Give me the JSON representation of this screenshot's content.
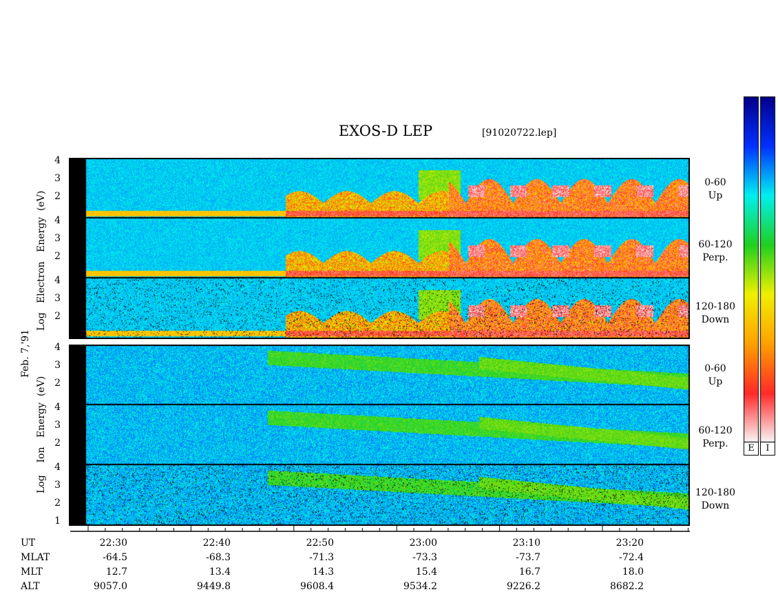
{
  "title": "EXOS-D LEP",
  "file": "[91020722.lep]",
  "date_label": "Feb. 7,'91",
  "electron_axis": {
    "parts": [
      "Log",
      "Electron",
      "Energy",
      "(eV)"
    ]
  },
  "ion_axis": {
    "parts": [
      "Log",
      "Ion",
      "Energy",
      "(eV)"
    ]
  },
  "y_ticks": [
    "4",
    "3",
    "2"
  ],
  "panel_y_ticks": {
    "electron": [
      "4",
      "3",
      "2"
    ],
    "ion_bottom": [
      "4",
      "3",
      "2",
      "1"
    ]
  },
  "panels": [
    {
      "range": "0-60",
      "dir": "Up"
    },
    {
      "range": "60-120",
      "dir": "Perp."
    },
    {
      "range": "120-180",
      "dir": "Down"
    },
    {
      "range": "0-60",
      "dir": "Up"
    },
    {
      "range": "60-120",
      "dir": "Perp."
    },
    {
      "range": "120-180",
      "dir": "Down"
    }
  ],
  "colorbar_labels": [
    "E",
    "I"
  ],
  "orbit_table": {
    "row_labels": [
      "UT",
      "MLAT",
      "MLT",
      "ALT"
    ],
    "columns": [
      {
        "UT": "22:30",
        "MLAT": "-64.5",
        "MLT": "12.7",
        "ALT": "9057.0"
      },
      {
        "UT": "22:40",
        "MLAT": "-68.3",
        "MLT": "13.4",
        "ALT": "9449.8"
      },
      {
        "UT": "22:50",
        "MLAT": "-71.3",
        "MLT": "14.3",
        "ALT": "9608.4"
      },
      {
        "UT": "23:00",
        "MLAT": "-73.3",
        "MLT": "15.4",
        "ALT": "9534.2"
      },
      {
        "UT": "23:10",
        "MLAT": "-73.7",
        "MLT": "16.7",
        "ALT": "9226.2"
      },
      {
        "UT": "23:20",
        "MLAT": "-72.4",
        "MLT": "18.0",
        "ALT": "8682.2"
      }
    ]
  },
  "colors": {
    "background_blue": "#1a3cff",
    "colorscale": [
      "#f8f8f8",
      "#ff2a2a",
      "#ffa000",
      "#f0f000",
      "#20d020",
      "#00f0f0",
      "#0030ff",
      "#00008a"
    ]
  },
  "chart_data": {
    "type": "heatmap",
    "title": "EXOS-D LEP",
    "x_categories": [
      "22:30",
      "22:40",
      "22:50",
      "23:00",
      "23:10",
      "23:20"
    ],
    "ylabel_electron": "Log Electron Energy (eV)",
    "ylabel_ion": "Log Ion Energy (eV)",
    "ylim": [
      1,
      4
    ],
    "series": [
      {
        "name": "Electron 0-60 Up"
      },
      {
        "name": "Electron 60-120 Perp."
      },
      {
        "name": "Electron 120-180 Down"
      },
      {
        "name": "Ion 0-60 Up"
      },
      {
        "name": "Ion 60-120 Perp."
      },
      {
        "name": "Ion 120-180 Down"
      }
    ]
  }
}
